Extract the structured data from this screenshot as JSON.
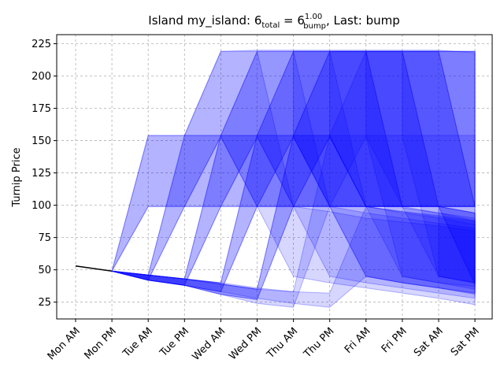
{
  "chart_data": {
    "type": "area",
    "title": {
      "prefix": "Island my_island: 6",
      "sub1": "total",
      "mid": " = 6",
      "sub2": "bump",
      "sup2": "1.00",
      "suffix": ", Last: bump"
    },
    "xlabel": "",
    "ylabel": "Turnip Price",
    "categories": [
      "Mon AM",
      "Mon PM",
      "Tue AM",
      "Tue PM",
      "Wed AM",
      "Wed PM",
      "Thu AM",
      "Thu PM",
      "Fri AM",
      "Fri PM",
      "Sat AM",
      "Sat PM"
    ],
    "yticks": [
      25,
      50,
      75,
      100,
      125,
      150,
      175,
      200,
      225
    ],
    "ylim": [
      12,
      232
    ],
    "grid": true,
    "line_color": "#000000",
    "band_fill": "#0000ff",
    "band_fill_opacity": 0.16,
    "band_stroke": "#0000ff",
    "band_stroke_opacity": 0.28,
    "known_line": [
      {
        "x": 0,
        "y": 53
      },
      {
        "x": 1,
        "y": 49
      }
    ],
    "bands": [
      {
        "x": [
          1,
          2,
          3,
          4,
          5,
          6,
          7,
          8,
          9,
          10,
          11
        ],
        "low": [
          49,
          99,
          99,
          99,
          99,
          99,
          99,
          99,
          99,
          99,
          99
        ],
        "high": [
          49,
          154,
          154,
          154,
          154,
          154,
          154,
          154,
          154,
          154,
          154
        ]
      },
      {
        "x": [
          1,
          2,
          3,
          4,
          5,
          6,
          7,
          8,
          9,
          10,
          11
        ],
        "low": [
          49,
          42,
          99,
          153,
          99,
          99,
          99,
          99,
          99,
          99,
          99
        ],
        "high": [
          49,
          46,
          154,
          219,
          220,
          220,
          220,
          220,
          220,
          220,
          218
        ]
      },
      {
        "x": [
          1,
          2,
          3,
          4,
          5,
          6,
          7,
          8,
          9,
          10,
          11
        ],
        "low": [
          49,
          42,
          38,
          99,
          153,
          99,
          99,
          99,
          99,
          99,
          99
        ],
        "high": [
          49,
          46,
          43,
          154,
          219,
          219,
          219,
          219,
          219,
          219,
          219
        ]
      },
      {
        "x": [
          1,
          2,
          3,
          4,
          5,
          6,
          7,
          8,
          9,
          10,
          11
        ],
        "low": [
          49,
          42,
          38,
          33,
          99,
          153,
          99,
          99,
          99,
          99,
          99
        ],
        "high": [
          49,
          46,
          43,
          40,
          154,
          219,
          219,
          219,
          219,
          219,
          219
        ]
      },
      {
        "x": [
          1,
          2,
          3,
          4,
          5,
          6,
          7,
          8,
          9,
          10,
          11
        ],
        "low": [
          49,
          42,
          38,
          31,
          27,
          99,
          153,
          99,
          99,
          99,
          99
        ],
        "high": [
          49,
          46,
          43,
          39,
          35,
          154,
          219,
          219,
          219,
          219,
          219
        ]
      },
      {
        "x": [
          1,
          2,
          3,
          4,
          5,
          6,
          7,
          8,
          9,
          10,
          11
        ],
        "low": [
          49,
          42,
          38,
          31,
          24,
          21,
          99,
          153,
          45,
          40,
          37
        ],
        "high": [
          49,
          46,
          43,
          39,
          35,
          33,
          154,
          219,
          99,
          94,
          90
        ]
      },
      {
        "x": [
          1,
          2,
          3,
          4,
          5,
          6,
          7,
          8,
          9,
          10,
          11
        ],
        "low": [
          49,
          42,
          38,
          31,
          27,
          99,
          153,
          99,
          45,
          40,
          35
        ],
        "high": [
          49,
          46,
          43,
          39,
          35,
          154,
          219,
          219,
          98,
          94,
          88
        ]
      },
      {
        "x": [
          1,
          2,
          3,
          4,
          5,
          6,
          7,
          8,
          9,
          10,
          11
        ],
        "low": [
          49,
          42,
          38,
          33,
          99,
          153,
          99,
          45,
          40,
          36,
          32
        ],
        "high": [
          49,
          46,
          43,
          40,
          154,
          219,
          219,
          99,
          94,
          90,
          85
        ]
      },
      {
        "x": [
          1,
          2,
          3,
          4,
          5,
          6,
          7,
          8,
          9,
          10,
          11
        ],
        "low": [
          49,
          42,
          38,
          99,
          153,
          99,
          45,
          40,
          36,
          32,
          28
        ],
        "high": [
          49,
          46,
          43,
          154,
          219,
          219,
          99,
          94,
          90,
          86,
          82
        ]
      },
      {
        "x": [
          1,
          2,
          3,
          4,
          5,
          6,
          7,
          8,
          9,
          10,
          11
        ],
        "low": [
          49,
          42,
          99,
          153,
          99,
          45,
          40,
          36,
          32,
          28,
          23
        ],
        "high": [
          49,
          46,
          154,
          219,
          219,
          99,
          95,
          90,
          87,
          84,
          80
        ]
      },
      {
        "x": [
          1,
          2,
          3,
          4,
          5,
          6,
          7,
          8,
          9,
          10,
          11
        ],
        "low": [
          49,
          99,
          99,
          99,
          99,
          99,
          99,
          45,
          40,
          36,
          32
        ],
        "high": [
          49,
          154,
          154,
          154,
          154,
          154,
          154,
          99,
          95,
          92,
          88
        ]
      },
      {
        "x": [
          1,
          2,
          3,
          4,
          5,
          6,
          7,
          8,
          9,
          10,
          11
        ],
        "low": [
          49,
          42,
          38,
          33,
          28,
          24,
          21,
          45,
          40,
          36,
          31
        ],
        "high": [
          49,
          46,
          43,
          40,
          36,
          33,
          32,
          99,
          95,
          91,
          87
        ]
      },
      {
        "x": [
          6,
          7,
          8,
          9,
          10,
          11
        ],
        "low": [
          153,
          99,
          99,
          99,
          99,
          38
        ],
        "high": [
          219,
          219,
          219,
          219,
          219,
          99
        ]
      },
      {
        "x": [
          7,
          8,
          9,
          10,
          11
        ],
        "low": [
          153,
          99,
          99,
          99,
          40
        ],
        "high": [
          219,
          219,
          219,
          219,
          99
        ]
      },
      {
        "x": [
          8,
          9,
          10,
          11
        ],
        "low": [
          153,
          99,
          45,
          40
        ],
        "high": [
          219,
          219,
          99,
          94
        ]
      },
      {
        "x": [
          9,
          10,
          11
        ],
        "low": [
          153,
          45,
          40
        ],
        "high": [
          219,
          99,
          94
        ]
      },
      {
        "x": [
          10,
          11
        ],
        "low": [
          45,
          40
        ],
        "high": [
          99,
          94
        ]
      }
    ]
  }
}
